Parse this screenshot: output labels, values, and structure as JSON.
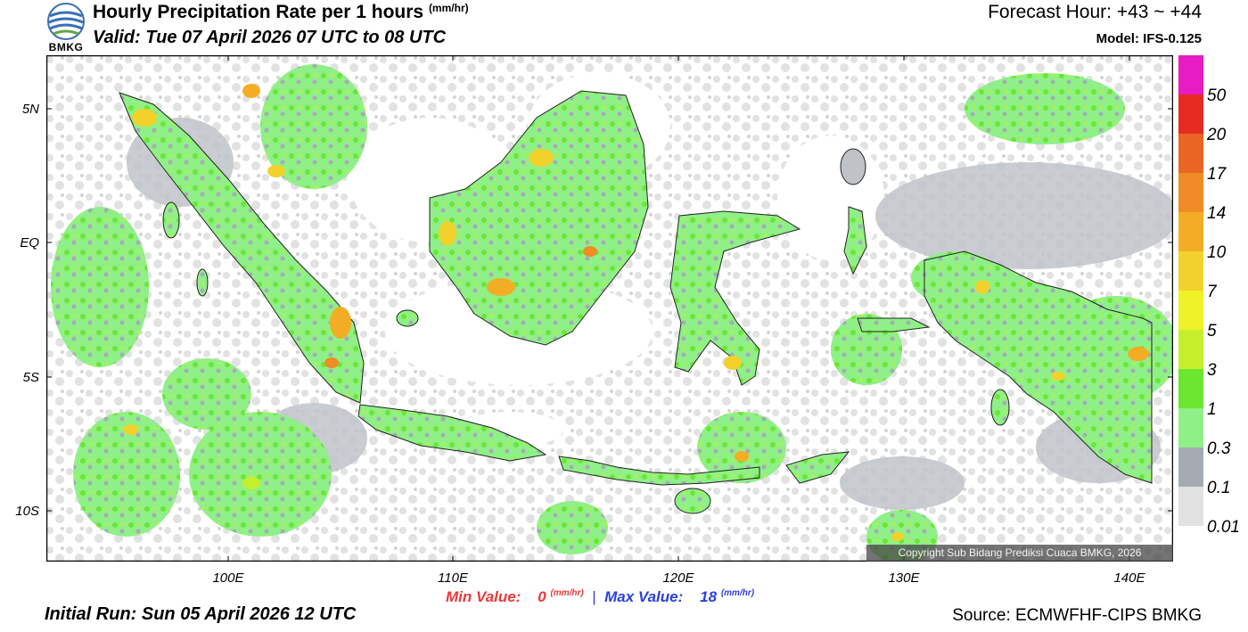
{
  "header": {
    "logo_text": "BMKG",
    "title": "Hourly Precipitation Rate per 1 hours",
    "title_unit": "(mm/hr)",
    "valid": "Valid: Tue 07 April 2026 07 UTC to 08 UTC",
    "forecast_hour": "Forecast Hour: +43 ~ +44",
    "model": "Model: IFS-0.125"
  },
  "map": {
    "lat_labels": [
      "5N",
      "EQ",
      "5S",
      "10S"
    ],
    "lon_labels": [
      "100E",
      "110E",
      "120E",
      "130E",
      "140E"
    ],
    "copyright": "Copyright Sub Bidang Prediksi Cuaca BMKG, 2026"
  },
  "colorbar": {
    "labels": [
      "50",
      "20",
      "17",
      "14",
      "10",
      "7",
      "5",
      "3",
      "1",
      "0.3",
      "0.1",
      "0.01"
    ],
    "colors": [
      "#e81cc2",
      "#e62b22",
      "#ea6424",
      "#f08c25",
      "#f2ad24",
      "#f2d12a",
      "#eef226",
      "#c6ef2b",
      "#6be72f",
      "#8ff088",
      "#a6abb3",
      "#e2e2e2"
    ]
  },
  "footer": {
    "min_label": "Min Value:",
    "min_value": "0",
    "max_label": "Max Value:",
    "max_value": "18",
    "unit": "(mm/hr)",
    "initial_run": "Initial Run: Sun 05 April 2026 12 UTC",
    "source": "Source: ECMWFHF-CIPS BMKG"
  }
}
